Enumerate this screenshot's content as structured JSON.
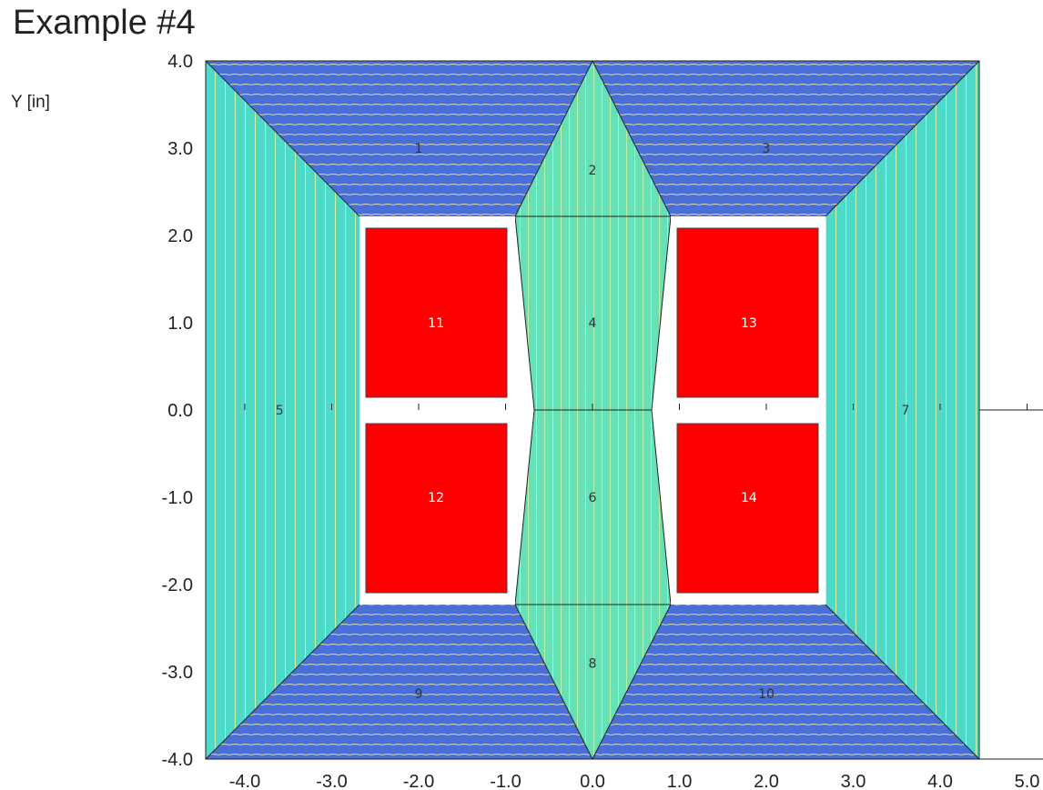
{
  "title": "Example #4",
  "y_axis_label": "Y [in]",
  "colors": {
    "steel_dark": "#4a6fd8",
    "steel_light": "#4fd9c9",
    "core_center": "#66e0b6",
    "coil": "#ff0000",
    "flux_line": "#ffff99",
    "outline": "#222222"
  },
  "chart_data": {
    "type": "diagram",
    "x_ticks": [
      "-4.0",
      "-3.0",
      "-2.0",
      "-1.0",
      "0.0",
      "1.0",
      "2.0",
      "3.0",
      "4.0",
      "5.0"
    ],
    "x_tick_values": [
      -4,
      -3,
      -2,
      -1,
      0,
      1,
      2,
      3,
      4,
      5
    ],
    "y_ticks": [
      "4.0",
      "3.0",
      "2.0",
      "1.0",
      "0.0",
      "-1.0",
      "-2.0",
      "-3.0",
      "-4.0"
    ],
    "y_tick_values": [
      4,
      3,
      2,
      1,
      0,
      -1,
      -2,
      -3,
      -4
    ],
    "regions": [
      {
        "label": "1",
        "x": -2.0,
        "y": 3.0
      },
      {
        "label": "3",
        "x": 2.0,
        "y": 3.0
      },
      {
        "label": "2",
        "x": 0.0,
        "y": 2.75
      },
      {
        "label": "4",
        "x": 0.0,
        "y": 1.0
      },
      {
        "label": "5",
        "x": -3.6,
        "y": 0.0
      },
      {
        "label": "7",
        "x": 3.6,
        "y": 0.0
      },
      {
        "label": "6",
        "x": 0.0,
        "y": -1.0
      },
      {
        "label": "8",
        "x": 0.0,
        "y": -2.9
      },
      {
        "label": "9",
        "x": -2.0,
        "y": -3.25
      },
      {
        "label": "10",
        "x": 2.0,
        "y": -3.25
      }
    ],
    "coils": [
      {
        "label": "11",
        "x": -1.8,
        "y": 1.0
      },
      {
        "label": "13",
        "x": 1.8,
        "y": 1.0
      },
      {
        "label": "12",
        "x": -1.8,
        "y": -1.0
      },
      {
        "label": "14",
        "x": 1.8,
        "y": -1.0
      }
    ]
  }
}
